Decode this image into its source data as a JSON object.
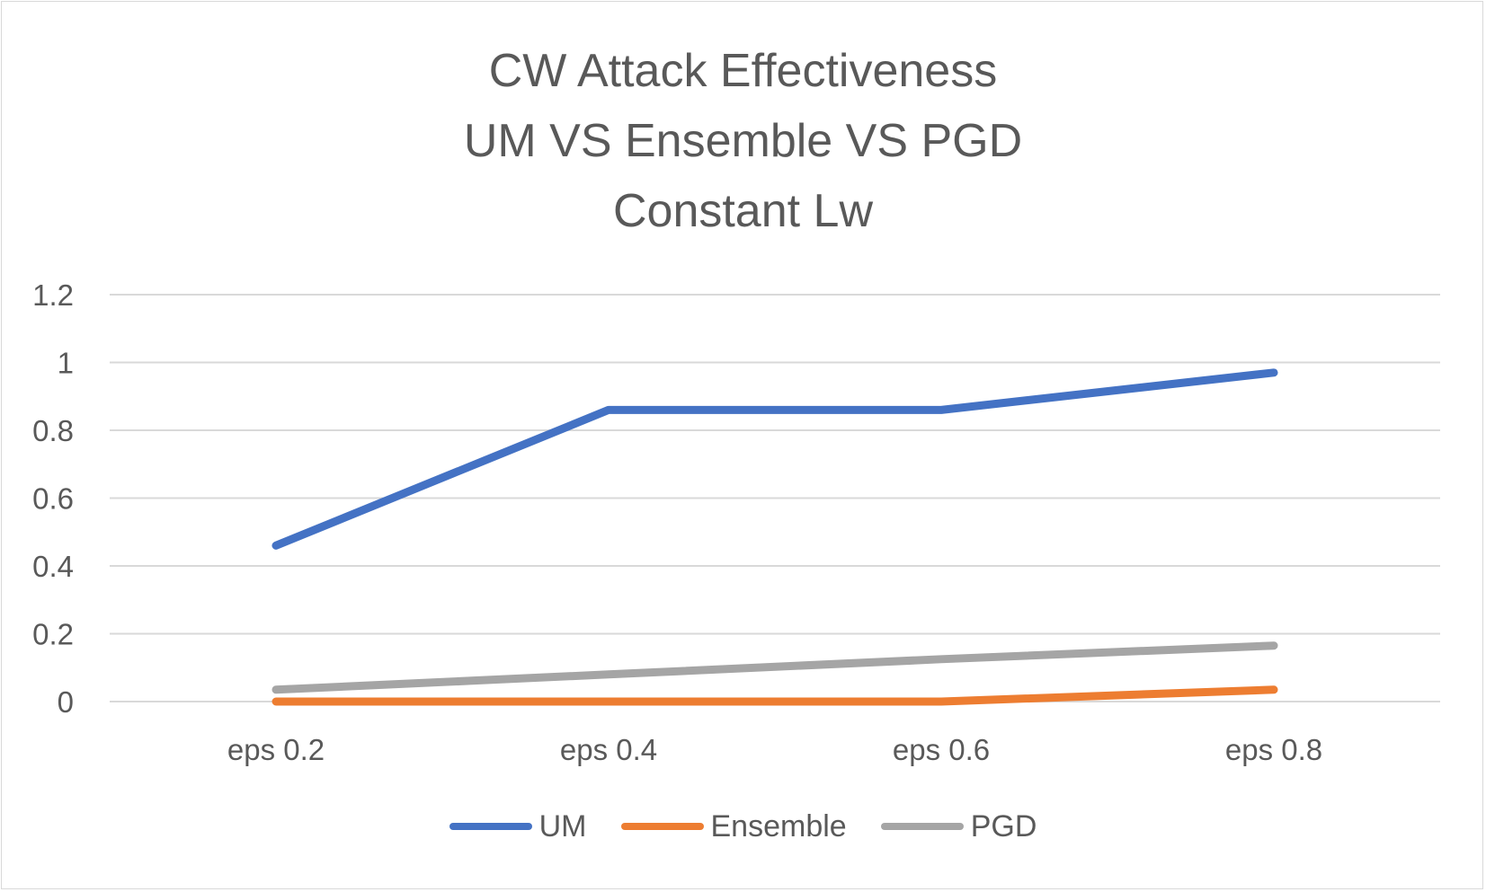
{
  "chart_data": {
    "type": "line",
    "title_lines": [
      "CW Attack Effectiveness",
      "UM VS Ensemble VS PGD",
      "Constant Lw"
    ],
    "categories": [
      "eps 0.2",
      "eps 0.4",
      "eps 0.6",
      "eps 0.8"
    ],
    "ylim": [
      0,
      1.2
    ],
    "yticks": [
      "0",
      "0.2",
      "0.4",
      "0.6",
      "0.8",
      "1",
      "1.2"
    ],
    "grid": true,
    "legend_position": "bottom",
    "series": [
      {
        "name": "UM",
        "color": "#4472c4",
        "values": [
          0.46,
          0.86,
          0.86,
          0.97
        ]
      },
      {
        "name": "Ensemble",
        "color": "#ed7d31",
        "values": [
          0.0,
          0.0,
          0.0,
          0.035
        ]
      },
      {
        "name": "PGD",
        "color": "#a5a5a5",
        "values": [
          0.035,
          0.08,
          0.125,
          0.165
        ]
      }
    ]
  }
}
